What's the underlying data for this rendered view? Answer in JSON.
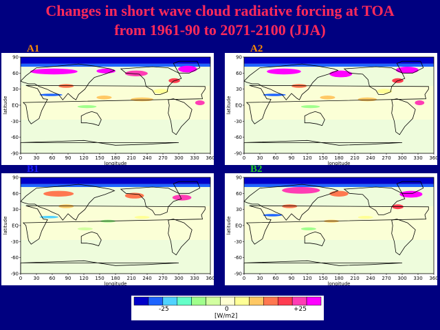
{
  "title": {
    "line1": "Changes in short wave cloud radiative forcing at TOA",
    "line2": "from 1961-90 to 2071-2100 (JJA)"
  },
  "panels": [
    {
      "label": "A1",
      "label_color": "#ff8c00"
    },
    {
      "label": "A2",
      "label_color": "#ff8c00"
    },
    {
      "label": "B1",
      "label_color": "#1a1aff"
    },
    {
      "label": "B2",
      "label_color": "#22cc22"
    }
  ],
  "axes": {
    "y_title": "latitude",
    "x_title": "longitude",
    "y_ticks": [
      "90",
      "60",
      "30",
      "EQ",
      "-30",
      "-60",
      "-90"
    ],
    "x_ticks": [
      "0",
      "30",
      "60",
      "90",
      "120",
      "150",
      "180",
      "210",
      "240",
      "270",
      "300",
      "330",
      "360"
    ]
  },
  "legend": {
    "colors": [
      "#0000c8",
      "#1e64ff",
      "#50d2ff",
      "#64ffc8",
      "#a0ff8c",
      "#d2ffa0",
      "#ffffd2",
      "#ffff96",
      "#ffc864",
      "#ff7850",
      "#ff3c50",
      "#ff3cb4",
      "#ff00ff"
    ],
    "tick_left": "-25",
    "tick_mid": "0",
    "tick_right": "+25",
    "unit": "[W/m2]"
  }
}
